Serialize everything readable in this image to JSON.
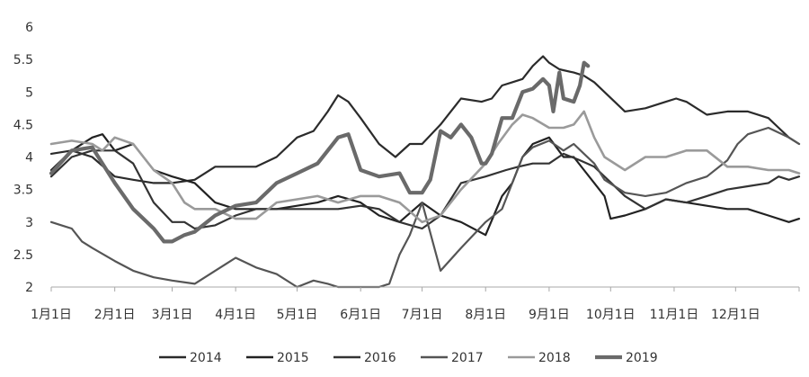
{
  "chart_data": {
    "type": "line",
    "title": "",
    "xlabel": "",
    "ylabel": "",
    "ylim": [
      2,
      6
    ],
    "xlim": [
      0,
      365
    ],
    "grid": false,
    "legend_position": "bottom",
    "yticks": [
      "6",
      "5.5",
      "5",
      "4.5",
      "4",
      "3.5",
      "3",
      "2.5",
      "2"
    ],
    "ytick_values": [
      6,
      5.5,
      5,
      4.5,
      4,
      3.5,
      3,
      2.5,
      2
    ],
    "xticks": [
      "1月1日",
      "2月1日",
      "3月1日",
      "4月1日",
      "5月1日",
      "6月1日",
      "7月1日",
      "8月1日",
      "9月1日",
      "10月1日",
      "11月1日",
      "12月1日"
    ],
    "xtick_positions": [
      0,
      31,
      59,
      90,
      120,
      151,
      181,
      212,
      243,
      273,
      304,
      334
    ],
    "series": [
      {
        "name": "2014",
        "color": "#2b2b2b",
        "stroke_width": 2.2,
        "x": [
          0,
          10,
          20,
          31,
          40,
          50,
          59,
          70,
          80,
          90,
          100,
          110,
          120,
          128,
          135,
          140,
          145,
          151,
          160,
          168,
          175,
          181,
          190,
          200,
          210,
          215,
          220,
          225,
          230,
          235,
          240,
          243,
          248,
          255,
          260,
          265,
          270,
          275,
          280,
          290,
          300,
          305,
          310,
          320,
          330,
          340,
          350,
          355,
          360,
          365
        ],
        "y": [
          4.05,
          4.1,
          4.0,
          3.7,
          3.65,
          3.6,
          3.6,
          3.65,
          3.85,
          3.85,
          3.85,
          4.0,
          4.3,
          4.4,
          4.7,
          4.95,
          4.85,
          4.6,
          4.2,
          4.0,
          4.2,
          4.2,
          4.5,
          4.9,
          4.85,
          4.9,
          5.1,
          5.15,
          5.2,
          5.4,
          5.55,
          5.45,
          5.35,
          5.3,
          5.25,
          5.15,
          5.0,
          4.85,
          4.7,
          4.75,
          4.85,
          4.9,
          4.85,
          4.65,
          4.7,
          4.7,
          4.6,
          4.45,
          4.3,
          4.2
        ]
      },
      {
        "name": "2015",
        "color": "#222222",
        "stroke_width": 2.2,
        "x": [
          0,
          10,
          20,
          25,
          31,
          40,
          50,
          59,
          70,
          80,
          90,
          100,
          110,
          120,
          130,
          140,
          151,
          160,
          170,
          181,
          190,
          200,
          212,
          220,
          225,
          230,
          235,
          243,
          250,
          255,
          260,
          265,
          270,
          273,
          280,
          290,
          300,
          310,
          320,
          330,
          340,
          350,
          360,
          365
        ],
        "y": [
          3.8,
          4.1,
          4.3,
          4.35,
          4.1,
          4.2,
          3.8,
          3.7,
          3.6,
          3.3,
          3.2,
          3.2,
          3.2,
          3.25,
          3.3,
          3.4,
          3.3,
          3.1,
          3.0,
          3.3,
          3.1,
          3.0,
          2.8,
          3.4,
          3.6,
          4.0,
          4.2,
          4.3,
          4.0,
          4.0,
          3.8,
          3.6,
          3.4,
          3.05,
          3.1,
          3.2,
          3.35,
          3.3,
          3.25,
          3.2,
          3.2,
          3.1,
          3.0,
          3.05
        ]
      },
      {
        "name": "2016",
        "color": "#333333",
        "stroke_width": 2.2,
        "x": [
          0,
          10,
          20,
          31,
          40,
          50,
          59,
          65,
          70,
          80,
          90,
          100,
          110,
          120,
          130,
          140,
          151,
          160,
          170,
          181,
          190,
          200,
          212,
          222,
          228,
          235,
          243,
          250,
          258,
          265,
          270,
          280,
          290,
          300,
          310,
          320,
          330,
          340,
          350,
          355,
          360,
          365
        ],
        "y": [
          3.7,
          4.0,
          4.1,
          4.1,
          3.9,
          3.3,
          3.0,
          3.0,
          2.9,
          2.95,
          3.1,
          3.2,
          3.2,
          3.2,
          3.2,
          3.2,
          3.25,
          3.2,
          3.0,
          2.9,
          3.1,
          3.6,
          3.7,
          3.8,
          3.85,
          3.9,
          3.9,
          4.05,
          3.95,
          3.85,
          3.7,
          3.4,
          3.2,
          3.35,
          3.3,
          3.4,
          3.5,
          3.55,
          3.6,
          3.7,
          3.65,
          3.7
        ]
      },
      {
        "name": "2017",
        "color": "#555555",
        "stroke_width": 2.2,
        "x": [
          0,
          5,
          10,
          15,
          20,
          31,
          40,
          50,
          59,
          70,
          80,
          90,
          100,
          110,
          120,
          128,
          135,
          140,
          151,
          160,
          165,
          170,
          175,
          181,
          190,
          200,
          212,
          220,
          225,
          230,
          235,
          243,
          250,
          255,
          260,
          265,
          270,
          280,
          290,
          300,
          310,
          320,
          330,
          335,
          340,
          350,
          360,
          365
        ],
        "y": [
          3.0,
          2.95,
          2.9,
          2.7,
          2.6,
          2.4,
          2.25,
          2.15,
          2.1,
          2.05,
          2.25,
          2.45,
          2.3,
          2.2,
          2.0,
          2.1,
          2.05,
          2.0,
          2.0,
          2.0,
          2.05,
          2.5,
          2.8,
          3.3,
          2.25,
          2.6,
          3.0,
          3.2,
          3.6,
          4.0,
          4.15,
          4.25,
          4.1,
          4.2,
          4.05,
          3.9,
          3.65,
          3.45,
          3.4,
          3.45,
          3.6,
          3.7,
          3.95,
          4.2,
          4.35,
          4.45,
          4.3,
          4.2
        ]
      },
      {
        "name": "2018",
        "color": "#9a9a9a",
        "stroke_width": 2.6,
        "x": [
          0,
          10,
          20,
          25,
          31,
          40,
          50,
          59,
          65,
          70,
          80,
          90,
          100,
          110,
          120,
          130,
          140,
          151,
          160,
          170,
          181,
          190,
          200,
          212,
          218,
          225,
          230,
          235,
          243,
          250,
          255,
          260,
          265,
          270,
          280,
          290,
          300,
          310,
          320,
          330,
          340,
          350,
          360,
          365
        ],
        "y": [
          4.2,
          4.25,
          4.2,
          4.1,
          4.3,
          4.2,
          3.8,
          3.6,
          3.3,
          3.2,
          3.2,
          3.05,
          3.05,
          3.3,
          3.35,
          3.4,
          3.3,
          3.4,
          3.4,
          3.3,
          3.0,
          3.1,
          3.5,
          3.9,
          4.2,
          4.5,
          4.65,
          4.6,
          4.45,
          4.45,
          4.5,
          4.7,
          4.3,
          4.0,
          3.8,
          4.0,
          4.0,
          4.1,
          4.1,
          3.85,
          3.85,
          3.8,
          3.8,
          3.75
        ]
      },
      {
        "name": "2019",
        "color": "#6a6a6a",
        "stroke_width": 4.2,
        "x": [
          0,
          10,
          20,
          31,
          40,
          50,
          55,
          59,
          65,
          70,
          80,
          90,
          100,
          110,
          120,
          130,
          140,
          145,
          151,
          160,
          170,
          175,
          181,
          185,
          190,
          195,
          200,
          205,
          210,
          212,
          215,
          220,
          225,
          230,
          235,
          240,
          243,
          245,
          248,
          250,
          255,
          258,
          260,
          262
        ],
        "y": [
          3.75,
          4.1,
          4.15,
          3.6,
          3.2,
          2.9,
          2.7,
          2.7,
          2.8,
          2.85,
          3.1,
          3.25,
          3.3,
          3.6,
          3.75,
          3.9,
          4.3,
          4.35,
          3.8,
          3.7,
          3.75,
          3.45,
          3.45,
          3.65,
          4.4,
          4.3,
          4.5,
          4.3,
          3.9,
          3.9,
          4.05,
          4.6,
          4.6,
          5.0,
          5.05,
          5.2,
          5.1,
          4.7,
          5.3,
          4.9,
          4.85,
          5.1,
          5.45,
          5.4
        ]
      }
    ]
  }
}
